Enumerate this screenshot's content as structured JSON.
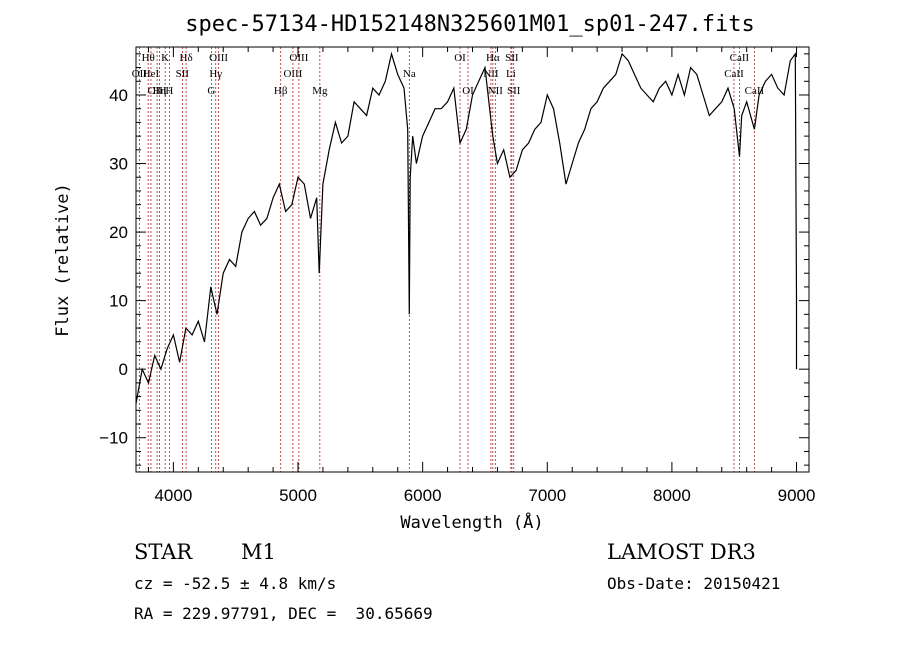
{
  "chart_data": {
    "type": "line",
    "title": "spec-57134-HD152148N325601M01_sp01-247.fits",
    "xlabel": "Wavelength (Å)",
    "ylabel": "Flux (relative)",
    "xlim": [
      3700,
      9100
    ],
    "ylim": [
      -15,
      47
    ],
    "xticks": [
      4000,
      5000,
      6000,
      7000,
      8000,
      9000
    ],
    "yticks": [
      -10,
      0,
      10,
      20,
      30,
      40
    ],
    "grid": false,
    "series": [
      {
        "x": [
          3700,
          3750,
          3800,
          3850,
          3900,
          3950,
          4000,
          4050,
          4100,
          4150,
          4200,
          4250,
          4300,
          4350,
          4400,
          4450,
          4500,
          4550,
          4600,
          4650,
          4700,
          4750,
          4800,
          4850,
          4900,
          4950,
          5000,
          5050,
          5100,
          5150,
          5170,
          5200,
          5250,
          5300,
          5350,
          5400,
          5450,
          5500,
          5550,
          5600,
          5650,
          5700,
          5750,
          5800,
          5850,
          5880,
          5893,
          5900,
          5920,
          5950,
          6000,
          6050,
          6100,
          6150,
          6200,
          6250,
          6300,
          6350,
          6400,
          6450,
          6500,
          6550,
          6563,
          6600,
          6650,
          6700,
          6750,
          6800,
          6850,
          6900,
          6950,
          7000,
          7050,
          7100,
          7150,
          7200,
          7250,
          7300,
          7350,
          7400,
          7450,
          7500,
          7550,
          7600,
          7650,
          7700,
          7750,
          7800,
          7850,
          7900,
          7950,
          8000,
          8050,
          8100,
          8150,
          8200,
          8250,
          8300,
          8350,
          8400,
          8450,
          8500,
          8542,
          8560,
          8600,
          8662,
          8700,
          8750,
          8800,
          8850,
          8900,
          8950,
          8990,
          9000,
          9000
        ],
        "y": [
          -5,
          0,
          -2,
          2,
          0,
          3,
          5,
          1,
          6,
          5,
          7,
          4,
          12,
          8,
          14,
          16,
          15,
          20,
          22,
          23,
          21,
          22,
          25,
          27,
          23,
          24,
          28,
          27,
          22,
          25,
          14,
          27,
          32,
          36,
          33,
          34,
          39,
          38,
          37,
          41,
          40,
          42,
          46,
          43,
          41,
          35,
          8,
          28,
          34,
          30,
          34,
          36,
          38,
          38,
          39,
          41,
          33,
          35,
          40,
          42,
          44,
          36,
          34,
          30,
          32,
          28,
          29,
          32,
          33,
          35,
          36,
          40,
          38,
          33,
          27,
          30,
          33,
          35,
          38,
          39,
          41,
          42,
          43,
          46,
          45,
          43,
          41,
          40,
          39,
          41,
          42,
          40,
          43,
          40,
          44,
          43,
          40,
          37,
          38,
          39,
          41,
          38,
          31,
          37,
          39,
          35,
          40,
          42,
          43,
          41,
          40,
          45,
          46,
          10,
          0
        ]
      }
    ],
    "lines": [
      {
        "name": "Hθ",
        "wavelength": 3798,
        "row": 1
      },
      {
        "name": "OII",
        "wavelength": 3727,
        "row": 2
      },
      {
        "name": "HeI",
        "wavelength": 3820,
        "row": 2
      },
      {
        "name": "OIII",
        "wavelength": 3869,
        "row": 3
      },
      {
        "name": "Hη",
        "wavelength": 3889,
        "row": 3
      },
      {
        "name": "K",
        "wavelength": 3934,
        "row": 1
      },
      {
        "name": "H",
        "wavelength": 3968,
        "row": 3
      },
      {
        "name": "Hδ",
        "wavelength": 4102,
        "row": 1
      },
      {
        "name": "SII",
        "wavelength": 4072,
        "row": 2
      },
      {
        "name": "OIII",
        "wavelength": 4363,
        "row": 1
      },
      {
        "name": "Hγ",
        "wavelength": 4340,
        "row": 2
      },
      {
        "name": "G",
        "wavelength": 4305,
        "row": 3
      },
      {
        "name": "OIII",
        "wavelength": 5007,
        "row": 1
      },
      {
        "name": "OIII",
        "wavelength": 4959,
        "row": 2
      },
      {
        "name": "Hβ",
        "wavelength": 4861,
        "row": 3
      },
      {
        "name": "Mg",
        "wavelength": 5175,
        "row": 3
      },
      {
        "name": "Na",
        "wavelength": 5893,
        "row": 2
      },
      {
        "name": "OI",
        "wavelength": 6300,
        "row": 1
      },
      {
        "name": "OI",
        "wavelength": 6364,
        "row": 3
      },
      {
        "name": "Hα",
        "wavelength": 6563,
        "row": 1
      },
      {
        "name": "SII",
        "wavelength": 6716,
        "row": 1
      },
      {
        "name": "NII",
        "wavelength": 6548,
        "row": 2
      },
      {
        "name": "Li",
        "wavelength": 6708,
        "row": 2
      },
      {
        "name": "NII",
        "wavelength": 6583,
        "row": 3
      },
      {
        "name": "SII",
        "wavelength": 6731,
        "row": 3
      },
      {
        "name": "CaII",
        "wavelength": 8542,
        "row": 1
      },
      {
        "name": "CaII",
        "wavelength": 8498,
        "row": 2
      },
      {
        "name": "CaII",
        "wavelength": 8662,
        "row": 3
      }
    ]
  },
  "info": {
    "class": "STAR",
    "subclass": "M1",
    "cz": "cz = -52.5 ± 4.8 km/s",
    "radec": "RA = 229.97791, DEC =  30.65669",
    "survey": "LAMOST DR3",
    "obsdate": "Obs-Date: 20150421"
  }
}
